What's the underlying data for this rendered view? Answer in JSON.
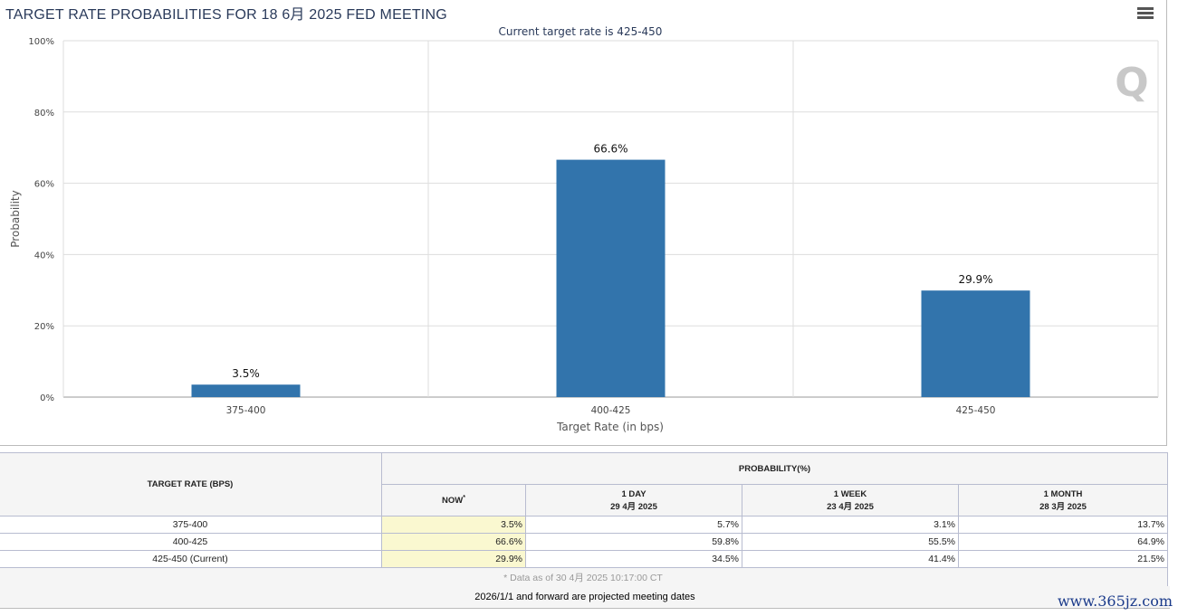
{
  "title": "TARGET RATE PROBABILITIES FOR 18 6月 2025 FED MEETING",
  "chart_data": {
    "type": "bar",
    "subtitle": "Current target rate is 425-450",
    "categories": [
      "375-400",
      "400-425",
      "425-450"
    ],
    "values": [
      3.5,
      66.6,
      29.9
    ],
    "data_labels": [
      "3.5%",
      "66.6%",
      "29.9%"
    ],
    "xlabel": "Target Rate (in bps)",
    "ylabel": "Probability",
    "ylim": [
      0,
      100
    ],
    "yticks": [
      "0%",
      "20%",
      "40%",
      "60%",
      "80%",
      "100%"
    ],
    "bar_color": "#3274ac",
    "grid": true
  },
  "table": {
    "col_rate": "TARGET RATE (BPS)",
    "col_prob": "PROBABILITY(%)",
    "sub": [
      {
        "l1": "NOW",
        "l2": ""
      },
      {
        "l1": "1 DAY",
        "l2": "29 4月 2025"
      },
      {
        "l1": "1 WEEK",
        "l2": "23 4月 2025"
      },
      {
        "l1": "1 MONTH",
        "l2": "28 3月 2025"
      }
    ],
    "asterisk": "*",
    "rows": [
      {
        "rate": "375-400",
        "v": [
          "3.5%",
          "5.7%",
          "3.1%",
          "13.7%"
        ]
      },
      {
        "rate": "400-425",
        "v": [
          "66.6%",
          "59.8%",
          "55.5%",
          "64.9%"
        ]
      },
      {
        "rate": "425-450 (Current)",
        "v": [
          "29.9%",
          "34.5%",
          "41.4%",
          "21.5%"
        ]
      }
    ],
    "footnote": "* Data as of 30 4月 2025 10:17:00 CT"
  },
  "projected": "2026/1/1 and forward are projected meeting dates",
  "watermark": "www.365jz.com"
}
